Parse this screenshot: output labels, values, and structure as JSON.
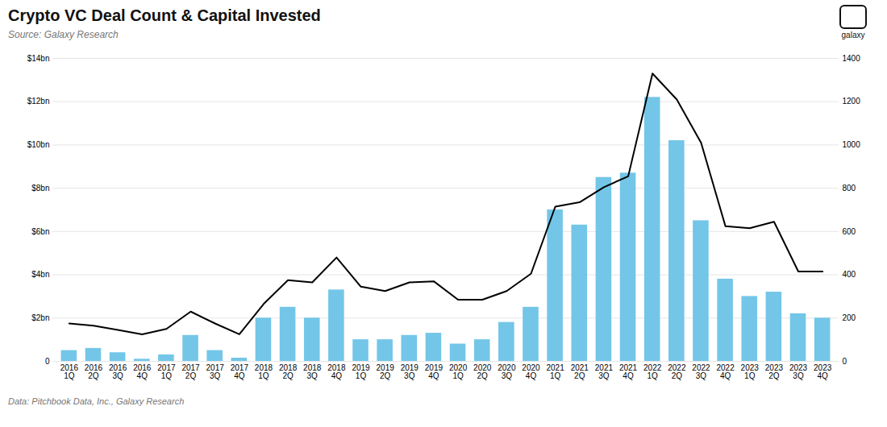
{
  "chart_data": {
    "type": "bar",
    "title": "Crypto VC Deal Count & Capital Invested",
    "subtitle": "Source: Galaxy Research",
    "caption": "Data: Pitchbook Data, Inc., Galaxy Research",
    "annotations": [
      "galaxy"
    ],
    "categories": [
      "2016\n1Q",
      "2016\n2Q",
      "2016\n3Q",
      "2016\n4Q",
      "2017\n1Q",
      "2017\n2Q",
      "2017\n3Q",
      "2017\n4Q",
      "2018\n1Q",
      "2018\n2Q",
      "2018\n3Q",
      "2018\n4Q",
      "2019\n1Q",
      "2019\n2Q",
      "2019\n3Q",
      "2019\n4Q",
      "2020\n1Q",
      "2020\n2Q",
      "2020\n3Q",
      "2020\n4Q",
      "2021\n1Q",
      "2021\n2Q",
      "2021\n3Q",
      "2021\n4Q",
      "2022\n1Q",
      "2022\n2Q",
      "2022\n3Q",
      "2022\n4Q",
      "2023\n1Q",
      "2023\n2Q",
      "2023\n3Q",
      "2023\n4Q"
    ],
    "series": [
      {
        "type": "bar",
        "color": "#73C6E8",
        "values": [
          0.5,
          0.6,
          0.4,
          0.1,
          0.3,
          1.2,
          0.5,
          0.15,
          2.0,
          2.5,
          2.0,
          3.3,
          1.0,
          1.0,
          1.2,
          1.3,
          0.8,
          1.0,
          1.8,
          2.5,
          7.0,
          6.3,
          8.5,
          8.7,
          12.2,
          10.2,
          6.5,
          3.8,
          3.0,
          3.2,
          2.2,
          2.0
        ]
      },
      {
        "type": "line",
        "axis": "y2",
        "color": "#000000",
        "values": [
          175,
          165,
          145,
          125,
          150,
          230,
          175,
          125,
          265,
          375,
          365,
          480,
          345,
          325,
          365,
          370,
          285,
          285,
          325,
          405,
          715,
          735,
          805,
          855,
          1330,
          1210,
          1010,
          625,
          615,
          645,
          415,
          415
        ]
      }
    ],
    "ylim": [
      0,
      14
    ],
    "yticks": [
      0,
      {
        "value": 2,
        "label": "$2bn"
      },
      {
        "value": 4,
        "label": "$4bn"
      },
      {
        "value": 6,
        "label": "$6bn"
      },
      {
        "value": 8,
        "label": "$8bn"
      },
      {
        "value": 10,
        "label": "$10bn"
      },
      {
        "value": 12,
        "label": "$12bn"
      },
      {
        "value": 14,
        "label": "$14bn"
      }
    ],
    "y2lim": [
      0,
      1400
    ],
    "y2ticks": [
      0,
      200,
      400,
      600,
      800,
      1000,
      1200,
      1400
    ],
    "grid": true
  }
}
